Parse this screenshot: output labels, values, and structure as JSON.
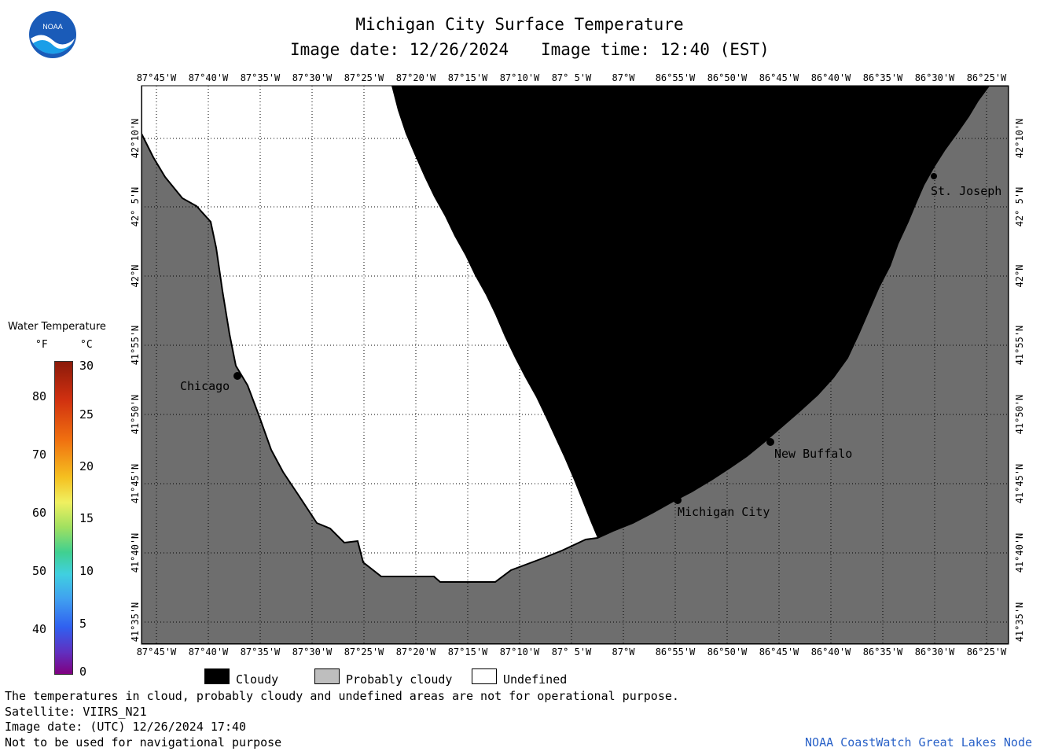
{
  "header": {
    "title": "Michigan City Surface Temperature",
    "image_date_label": "Image date: 12/26/2024",
    "image_time_label": "Image time: 12:40 (EST)",
    "logo_text": "NOAA"
  },
  "map": {
    "lon_ticks": [
      "87°45'W",
      "87°40'W",
      "87°35'W",
      "87°30'W",
      "87°25'W",
      "87°20'W",
      "87°15'W",
      "87°10'W",
      "87° 5'W",
      "87°W",
      "86°55'W",
      "86°50'W",
      "86°45'W",
      "86°40'W",
      "86°35'W",
      "86°30'W",
      "86°25'W"
    ],
    "lat_ticks": [
      "42°10'N",
      "42° 5'N",
      "42°N",
      "41°55'N",
      "41°50'N",
      "41°45'N",
      "41°40'N",
      "41°35'N"
    ],
    "cities": [
      {
        "name": "Chicago"
      },
      {
        "name": "St. Joseph"
      },
      {
        "name": "New Buffalo"
      },
      {
        "name": "Michigan City"
      }
    ],
    "land_color": "#6e6e6e",
    "cloud_color": "#000000",
    "undefined_color": "#ffffff"
  },
  "colorbar": {
    "title": "Water Temperature",
    "unit_f": "°F",
    "unit_c": "°C",
    "f_ticks": [
      "80",
      "70",
      "60",
      "50",
      "40"
    ],
    "c_ticks": [
      "30",
      "25",
      "20",
      "15",
      "10",
      "5",
      "0"
    ]
  },
  "legend": {
    "items": [
      {
        "label": "Cloudy",
        "color": "#000000"
      },
      {
        "label": "Probably cloudy",
        "color": "#bebebe"
      },
      {
        "label": "Undefined",
        "color": "#ffffff"
      }
    ]
  },
  "footer": {
    "note": "The temperatures in cloud, probably cloudy and undefined areas are not for operational purpose.",
    "satellite": "Satellite: VIIRS_N21",
    "utc_date": "Image date: (UTC) 12/26/2024  17:40",
    "nav_warning": "Not to be used for navigational purpose",
    "credit": "NOAA CoastWatch Great Lakes Node",
    "credit_color": "#2a62c8"
  }
}
